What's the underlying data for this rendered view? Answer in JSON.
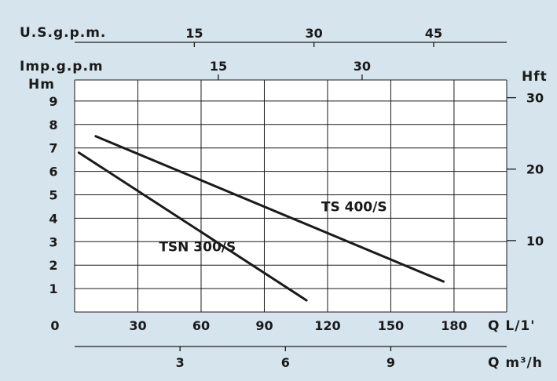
{
  "chart_data": {
    "type": "line",
    "x_unit": "L/1'",
    "xlim": [
      0,
      205
    ],
    "ylim": [
      0,
      9.9
    ],
    "grid": true,
    "primary_x": {
      "label": "Q L/1'",
      "zero_label": "0",
      "ticks": [
        30,
        60,
        90,
        120,
        150,
        180
      ]
    },
    "secondary_x_m3h": {
      "label": "Q m³/h",
      "ticks": [
        3,
        6,
        9
      ]
    },
    "top_us_gpm": {
      "label": "U.S.g.p.m.",
      "ticks": [
        15,
        30,
        45
      ]
    },
    "top_imp_gpm": {
      "label": "Imp.g.p.m",
      "ticks": [
        15,
        30
      ]
    },
    "left_y": {
      "label": "Hm",
      "ticks": [
        1,
        2,
        3,
        4,
        5,
        6,
        7,
        8,
        9
      ]
    },
    "right_y": {
      "label": "Hft",
      "ticks": [
        10,
        20,
        30
      ]
    },
    "series": [
      {
        "name": "TSN 300/S",
        "x": [
          2,
          110
        ],
        "y": [
          6.8,
          0.5
        ]
      },
      {
        "name": "TS 400/S",
        "x": [
          10,
          175
        ],
        "y": [
          7.5,
          1.3
        ]
      }
    ],
    "series_labels": [
      {
        "text": "TSN 300/S",
        "x": 40,
        "y": 2.6
      },
      {
        "text": "TS 400/S",
        "x": 117,
        "y": 4.3
      }
    ]
  }
}
